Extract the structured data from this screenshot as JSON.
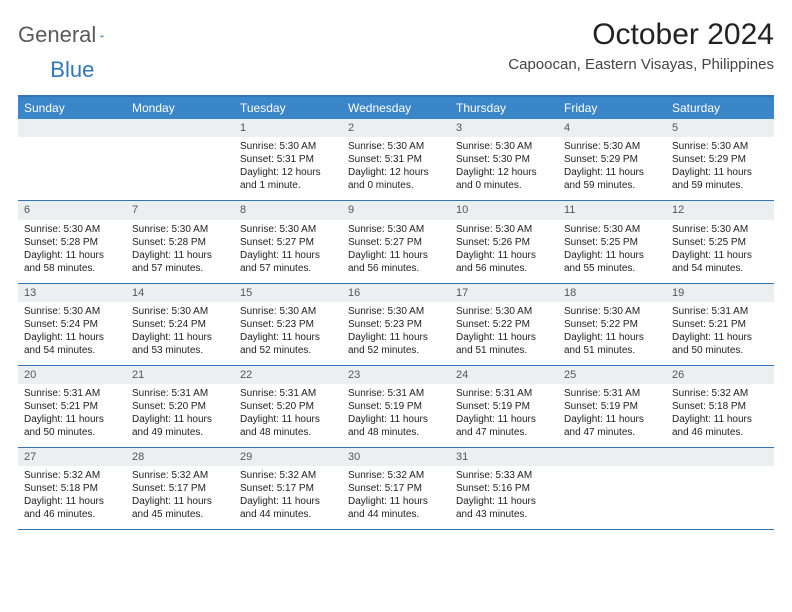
{
  "brand": {
    "part1": "General",
    "part2": "Blue"
  },
  "title": "October 2024",
  "location": "Capoocan, Eastern Visayas, Philippines",
  "colors": {
    "header_bar": "#3a86c8",
    "border": "#2f77b8",
    "daynum_bg": "#eceff1",
    "text": "#222222"
  },
  "weekdays": [
    "Sunday",
    "Monday",
    "Tuesday",
    "Wednesday",
    "Thursday",
    "Friday",
    "Saturday"
  ],
  "weeks": [
    [
      {
        "n": "",
        "sr": "",
        "ss": "",
        "dl": ""
      },
      {
        "n": "",
        "sr": "",
        "ss": "",
        "dl": ""
      },
      {
        "n": "1",
        "sr": "Sunrise: 5:30 AM",
        "ss": "Sunset: 5:31 PM",
        "dl": "Daylight: 12 hours and 1 minute."
      },
      {
        "n": "2",
        "sr": "Sunrise: 5:30 AM",
        "ss": "Sunset: 5:31 PM",
        "dl": "Daylight: 12 hours and 0 minutes."
      },
      {
        "n": "3",
        "sr": "Sunrise: 5:30 AM",
        "ss": "Sunset: 5:30 PM",
        "dl": "Daylight: 12 hours and 0 minutes."
      },
      {
        "n": "4",
        "sr": "Sunrise: 5:30 AM",
        "ss": "Sunset: 5:29 PM",
        "dl": "Daylight: 11 hours and 59 minutes."
      },
      {
        "n": "5",
        "sr": "Sunrise: 5:30 AM",
        "ss": "Sunset: 5:29 PM",
        "dl": "Daylight: 11 hours and 59 minutes."
      }
    ],
    [
      {
        "n": "6",
        "sr": "Sunrise: 5:30 AM",
        "ss": "Sunset: 5:28 PM",
        "dl": "Daylight: 11 hours and 58 minutes."
      },
      {
        "n": "7",
        "sr": "Sunrise: 5:30 AM",
        "ss": "Sunset: 5:28 PM",
        "dl": "Daylight: 11 hours and 57 minutes."
      },
      {
        "n": "8",
        "sr": "Sunrise: 5:30 AM",
        "ss": "Sunset: 5:27 PM",
        "dl": "Daylight: 11 hours and 57 minutes."
      },
      {
        "n": "9",
        "sr": "Sunrise: 5:30 AM",
        "ss": "Sunset: 5:27 PM",
        "dl": "Daylight: 11 hours and 56 minutes."
      },
      {
        "n": "10",
        "sr": "Sunrise: 5:30 AM",
        "ss": "Sunset: 5:26 PM",
        "dl": "Daylight: 11 hours and 56 minutes."
      },
      {
        "n": "11",
        "sr": "Sunrise: 5:30 AM",
        "ss": "Sunset: 5:25 PM",
        "dl": "Daylight: 11 hours and 55 minutes."
      },
      {
        "n": "12",
        "sr": "Sunrise: 5:30 AM",
        "ss": "Sunset: 5:25 PM",
        "dl": "Daylight: 11 hours and 54 minutes."
      }
    ],
    [
      {
        "n": "13",
        "sr": "Sunrise: 5:30 AM",
        "ss": "Sunset: 5:24 PM",
        "dl": "Daylight: 11 hours and 54 minutes."
      },
      {
        "n": "14",
        "sr": "Sunrise: 5:30 AM",
        "ss": "Sunset: 5:24 PM",
        "dl": "Daylight: 11 hours and 53 minutes."
      },
      {
        "n": "15",
        "sr": "Sunrise: 5:30 AM",
        "ss": "Sunset: 5:23 PM",
        "dl": "Daylight: 11 hours and 52 minutes."
      },
      {
        "n": "16",
        "sr": "Sunrise: 5:30 AM",
        "ss": "Sunset: 5:23 PM",
        "dl": "Daylight: 11 hours and 52 minutes."
      },
      {
        "n": "17",
        "sr": "Sunrise: 5:30 AM",
        "ss": "Sunset: 5:22 PM",
        "dl": "Daylight: 11 hours and 51 minutes."
      },
      {
        "n": "18",
        "sr": "Sunrise: 5:30 AM",
        "ss": "Sunset: 5:22 PM",
        "dl": "Daylight: 11 hours and 51 minutes."
      },
      {
        "n": "19",
        "sr": "Sunrise: 5:31 AM",
        "ss": "Sunset: 5:21 PM",
        "dl": "Daylight: 11 hours and 50 minutes."
      }
    ],
    [
      {
        "n": "20",
        "sr": "Sunrise: 5:31 AM",
        "ss": "Sunset: 5:21 PM",
        "dl": "Daylight: 11 hours and 50 minutes."
      },
      {
        "n": "21",
        "sr": "Sunrise: 5:31 AM",
        "ss": "Sunset: 5:20 PM",
        "dl": "Daylight: 11 hours and 49 minutes."
      },
      {
        "n": "22",
        "sr": "Sunrise: 5:31 AM",
        "ss": "Sunset: 5:20 PM",
        "dl": "Daylight: 11 hours and 48 minutes."
      },
      {
        "n": "23",
        "sr": "Sunrise: 5:31 AM",
        "ss": "Sunset: 5:19 PM",
        "dl": "Daylight: 11 hours and 48 minutes."
      },
      {
        "n": "24",
        "sr": "Sunrise: 5:31 AM",
        "ss": "Sunset: 5:19 PM",
        "dl": "Daylight: 11 hours and 47 minutes."
      },
      {
        "n": "25",
        "sr": "Sunrise: 5:31 AM",
        "ss": "Sunset: 5:19 PM",
        "dl": "Daylight: 11 hours and 47 minutes."
      },
      {
        "n": "26",
        "sr": "Sunrise: 5:32 AM",
        "ss": "Sunset: 5:18 PM",
        "dl": "Daylight: 11 hours and 46 minutes."
      }
    ],
    [
      {
        "n": "27",
        "sr": "Sunrise: 5:32 AM",
        "ss": "Sunset: 5:18 PM",
        "dl": "Daylight: 11 hours and 46 minutes."
      },
      {
        "n": "28",
        "sr": "Sunrise: 5:32 AM",
        "ss": "Sunset: 5:17 PM",
        "dl": "Daylight: 11 hours and 45 minutes."
      },
      {
        "n": "29",
        "sr": "Sunrise: 5:32 AM",
        "ss": "Sunset: 5:17 PM",
        "dl": "Daylight: 11 hours and 44 minutes."
      },
      {
        "n": "30",
        "sr": "Sunrise: 5:32 AM",
        "ss": "Sunset: 5:17 PM",
        "dl": "Daylight: 11 hours and 44 minutes."
      },
      {
        "n": "31",
        "sr": "Sunrise: 5:33 AM",
        "ss": "Sunset: 5:16 PM",
        "dl": "Daylight: 11 hours and 43 minutes."
      },
      {
        "n": "",
        "sr": "",
        "ss": "",
        "dl": ""
      },
      {
        "n": "",
        "sr": "",
        "ss": "",
        "dl": ""
      }
    ]
  ]
}
